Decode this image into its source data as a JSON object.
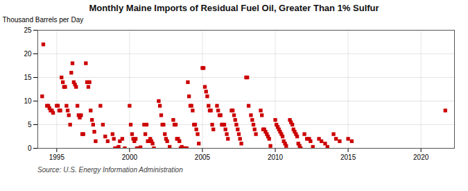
{
  "chart_data": {
    "type": "scatter",
    "title": "Monthly Maine Imports of Residual Fuel Oil, Greater Than 1% Sulfur",
    "ylabel": "Thousand Barrels per Day",
    "annotations": [
      "Source: U.S. Energy Information Administration"
    ],
    "color": "#cc0000",
    "marker": "square",
    "grid": true,
    "xlim": [
      1993.7,
      2022.3
    ],
    "ylim": [
      0,
      25
    ],
    "xticks": [
      1995,
      2000,
      2005,
      2010,
      2015,
      2020
    ],
    "yticks": [
      0,
      5,
      10,
      15,
      20,
      25
    ],
    "x": [
      1994.0,
      1994.08,
      1994.33,
      1994.42,
      1994.5,
      1994.58,
      1994.67,
      1994.75,
      1995.0,
      1995.08,
      1995.17,
      1995.25,
      1995.33,
      1995.42,
      1995.5,
      1995.58,
      1995.67,
      1995.75,
      1995.83,
      1995.92,
      1996.0,
      1996.08,
      1996.17,
      1996.25,
      1996.33,
      1996.42,
      1996.5,
      1996.58,
      1996.67,
      1996.75,
      1996.83,
      1997.0,
      1997.08,
      1997.17,
      1997.25,
      1997.33,
      1997.42,
      1997.5,
      1997.58,
      1997.67,
      1998.0,
      1998.17,
      1998.33,
      1998.5,
      1998.83,
      1998.92,
      1999.0,
      1999.08,
      1999.17,
      1999.25,
      1999.33,
      1999.5,
      1999.67,
      2000.0,
      2000.08,
      2000.17,
      2000.25,
      2000.33,
      2000.42,
      2000.5,
      2000.58,
      2000.75,
      2001.0,
      2001.08,
      2001.17,
      2001.25,
      2001.33,
      2001.42,
      2001.5,
      2001.58,
      2001.67,
      2002.0,
      2002.08,
      2002.17,
      2002.25,
      2002.33,
      2002.42,
      2002.5,
      2002.58,
      2002.75,
      2003.0,
      2003.08,
      2003.17,
      2003.25,
      2003.33,
      2003.42,
      2003.5,
      2003.58,
      2003.67,
      2003.75,
      2003.83,
      2003.92,
      2004.0,
      2004.08,
      2004.17,
      2004.25,
      2004.33,
      2004.42,
      2004.5,
      2004.58,
      2004.67,
      2004.75,
      2005.0,
      2005.08,
      2005.17,
      2005.25,
      2005.33,
      2005.42,
      2005.5,
      2005.58,
      2005.67,
      2005.75,
      2006.0,
      2006.08,
      2006.17,
      2006.25,
      2006.33,
      2006.42,
      2006.5,
      2006.58,
      2006.67,
      2006.75,
      2007.0,
      2007.08,
      2007.17,
      2007.25,
      2007.33,
      2007.42,
      2007.5,
      2007.58,
      2007.67,
      2008.0,
      2008.08,
      2008.17,
      2008.33,
      2008.42,
      2008.5,
      2008.58,
      2008.67,
      2009.0,
      2009.08,
      2009.17,
      2009.25,
      2009.33,
      2009.42,
      2009.5,
      2009.58,
      2009.67,
      2010.0,
      2010.08,
      2010.17,
      2010.25,
      2010.33,
      2010.42,
      2010.5,
      2010.58,
      2010.67,
      2010.75,
      2011.0,
      2011.08,
      2011.17,
      2011.25,
      2011.33,
      2011.42,
      2011.5,
      2011.58,
      2011.67,
      2011.75,
      2012.0,
      2012.17,
      2012.33,
      2012.42,
      2012.58,
      2013.0,
      2013.17,
      2013.42,
      2013.58,
      2014.0,
      2014.17,
      2014.42,
      2015.0,
      2015.25,
      2021.67
    ],
    "values": [
      11.0,
      22.0,
      9.0,
      9.0,
      8.5,
      8.0,
      8.0,
      7.5,
      9.0,
      9.0,
      8.0,
      8.0,
      15.0,
      14.0,
      13.0,
      13.0,
      9.0,
      8.0,
      7.0,
      5.0,
      16.0,
      18.0,
      14.0,
      13.5,
      13.0,
      9.0,
      7.0,
      6.5,
      7.0,
      3.0,
      3.0,
      18.0,
      14.0,
      13.0,
      14.0,
      8.0,
      6.0,
      5.0,
      3.5,
      1.5,
      9.0,
      5.0,
      2.5,
      1.5,
      3.0,
      2.0,
      0.0,
      0.0,
      0.0,
      0.3,
      1.5,
      2.0,
      0.0,
      9.0,
      5.0,
      3.0,
      2.0,
      1.5,
      2.0,
      0.0,
      0.0,
      0.2,
      5.0,
      3.0,
      5.0,
      1.5,
      1.5,
      2.0,
      1.5,
      1.0,
      0.0,
      10.0,
      9.0,
      7.0,
      5.0,
      5.0,
      3.0,
      2.0,
      1.5,
      0.3,
      6.0,
      5.0,
      5.0,
      2.0,
      2.0,
      1.5,
      0.0,
      0.3,
      0.0,
      0.0,
      0.0,
      0.0,
      14.0,
      11.0,
      9.0,
      9.0,
      8.0,
      5.0,
      5.0,
      4.0,
      3.0,
      1.0,
      17.0,
      17.0,
      13.0,
      12.0,
      11.0,
      9.0,
      8.0,
      8.0,
      5.0,
      4.0,
      9.0,
      8.0,
      7.0,
      7.0,
      5.0,
      5.0,
      5.0,
      4.0,
      3.0,
      2.0,
      8.0,
      8.0,
      7.0,
      6.0,
      5.0,
      4.0,
      3.0,
      2.0,
      1.0,
      15.0,
      15.0,
      9.0,
      7.0,
      6.0,
      5.0,
      4.0,
      3.0,
      8.0,
      7.0,
      4.0,
      4.0,
      3.5,
      3.0,
      2.5,
      2.0,
      0.5,
      6.0,
      5.0,
      4.5,
      4.0,
      3.5,
      3.0,
      2.5,
      1.5,
      1.0,
      0.5,
      6.0,
      5.5,
      5.0,
      4.0,
      3.5,
      3.0,
      2.5,
      1.0,
      0.5,
      0.0,
      3.0,
      2.0,
      2.0,
      1.5,
      0.3,
      2.0,
      1.5,
      1.0,
      0.3,
      3.0,
      2.0,
      1.5,
      2.0,
      1.5,
      8.0
    ]
  }
}
